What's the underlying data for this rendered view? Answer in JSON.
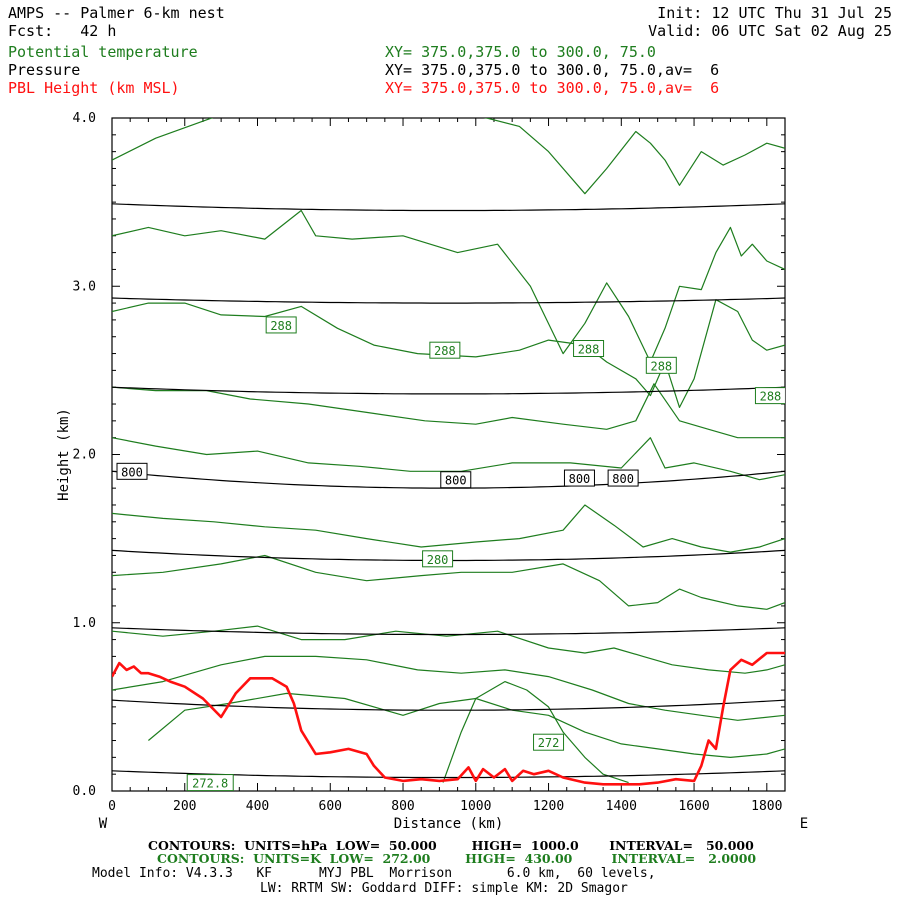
{
  "header": {
    "title": "AMPS -- Palmer 6-km nest",
    "fcst": "Fcst:   42 h",
    "init": "Init: 12 UTC Thu 31 Jul 25",
    "valid": "Valid: 06 UTC Sat 02 Aug 25",
    "field1_name": "Potential temperature",
    "field2_name": "Pressure",
    "field3_name": "PBL Height (km MSL)",
    "field1_xy": "XY= 375.0,375.0 to 300.0, 75.0",
    "field2_xy": "XY= 375.0,375.0 to 300.0, 75.0,av=  6",
    "field3_xy": "XY= 375.0,375.0 to 300.0, 75.0,av=  6"
  },
  "colors": {
    "theta": "#1e7d1e",
    "pressure": "#000000",
    "pbl": "#ff1010"
  },
  "chart_data": {
    "type": "line",
    "xlabel": "Distance (km)",
    "ylabel": "Height (km)",
    "xlim": [
      0,
      1850
    ],
    "ylim": [
      0,
      4.0
    ],
    "x_ticks": [
      0,
      200,
      400,
      600,
      800,
      1000,
      1200,
      1400,
      1600,
      1800
    ],
    "y_ticks": [
      0.0,
      1.0,
      2.0,
      3.0,
      4.0
    ],
    "y_tick_labels": [
      "0.0",
      "1.0",
      "2.0",
      "3.0",
      "4.0"
    ],
    "left_end_label": "W",
    "right_end_label": "E",
    "pressure_contours": [
      {
        "x": [
          0,
          925,
          1850
        ],
        "y": [
          3.49,
          3.45,
          3.49
        ]
      },
      {
        "x": [
          0,
          925,
          1850
        ],
        "y": [
          2.93,
          2.9,
          2.93
        ]
      },
      {
        "x": [
          0,
          925,
          1850
        ],
        "y": [
          2.4,
          2.36,
          2.4
        ]
      },
      {
        "x": [
          0,
          925,
          1850
        ],
        "y": [
          1.9,
          1.8,
          1.9
        ]
      },
      {
        "x": [
          0,
          925,
          1850
        ],
        "y": [
          1.43,
          1.37,
          1.43
        ]
      },
      {
        "x": [
          0,
          925,
          1850
        ],
        "y": [
          0.97,
          0.93,
          0.97
        ]
      },
      {
        "x": [
          0,
          925,
          1850
        ],
        "y": [
          0.54,
          0.48,
          0.54
        ]
      },
      {
        "x": [
          0,
          925,
          1850
        ],
        "y": [
          0.12,
          0.08,
          0.12
        ]
      }
    ],
    "pressure_labels": [
      {
        "text": "800",
        "x": 55,
        "y": 1.9
      },
      {
        "text": "800",
        "x": 945,
        "y": 1.85
      },
      {
        "text": "800",
        "x": 1285,
        "y": 1.86
      },
      {
        "text": "800",
        "x": 1405,
        "y": 1.86
      }
    ],
    "theta_contours": [
      {
        "x": [
          0,
          120,
          300,
          480,
          620,
          760,
          900,
          1030,
          1120,
          1200,
          1300,
          1360,
          1440,
          1480,
          1520,
          1560,
          1620,
          1680,
          1740,
          1800,
          1850
        ],
        "y": [
          3.75,
          3.88,
          4.02,
          4.05,
          4.03,
          4.02,
          4.05,
          4.0,
          3.95,
          3.8,
          3.55,
          3.7,
          3.92,
          3.85,
          3.75,
          3.6,
          3.8,
          3.72,
          3.78,
          3.85,
          3.82
        ]
      },
      {
        "x": [
          0,
          100,
          200,
          300,
          420,
          520,
          560,
          660,
          800,
          950,
          1060,
          1150,
          1240,
          1300,
          1360,
          1420,
          1480,
          1520,
          1560,
          1620,
          1660,
          1700,
          1730,
          1760,
          1800,
          1850
        ],
        "y": [
          3.3,
          3.35,
          3.3,
          3.33,
          3.28,
          3.45,
          3.3,
          3.28,
          3.3,
          3.2,
          3.25,
          3.0,
          2.6,
          2.78,
          3.02,
          2.82,
          2.55,
          2.75,
          3.0,
          2.98,
          3.2,
          3.35,
          3.18,
          3.25,
          3.15,
          3.1
        ]
      },
      {
        "x": [
          0,
          100,
          200,
          300,
          420,
          520,
          620,
          720,
          840,
          1000,
          1120,
          1200,
          1300,
          1360,
          1440,
          1480,
          1520,
          1560,
          1600,
          1660,
          1720,
          1760,
          1800,
          1850
        ],
        "y": [
          2.85,
          2.9,
          2.9,
          2.83,
          2.82,
          2.88,
          2.75,
          2.65,
          2.6,
          2.58,
          2.62,
          2.68,
          2.65,
          2.55,
          2.45,
          2.35,
          2.55,
          2.28,
          2.45,
          2.92,
          2.85,
          2.68,
          2.62,
          2.65
        ]
      },
      {
        "x": [
          0,
          120,
          260,
          380,
          540,
          700,
          860,
          1000,
          1100,
          1240,
          1360,
          1440,
          1490,
          1560,
          1640,
          1720,
          1800,
          1850
        ],
        "y": [
          2.4,
          2.38,
          2.38,
          2.33,
          2.3,
          2.25,
          2.2,
          2.18,
          2.22,
          2.18,
          2.15,
          2.2,
          2.42,
          2.2,
          2.15,
          2.1,
          2.1,
          2.1
        ]
      },
      {
        "x": [
          0,
          120,
          260,
          400,
          540,
          680,
          820,
          960,
          1100,
          1260,
          1400,
          1480,
          1520,
          1600,
          1700,
          1780,
          1850
        ],
        "y": [
          2.1,
          2.05,
          2.0,
          2.02,
          1.95,
          1.93,
          1.9,
          1.9,
          1.95,
          1.95,
          1.92,
          2.1,
          1.92,
          1.95,
          1.9,
          1.85,
          1.88
        ]
      },
      {
        "x": [
          0,
          140,
          280,
          420,
          560,
          700,
          850,
          1000,
          1120,
          1240,
          1300,
          1380,
          1460,
          1540,
          1620,
          1700,
          1780,
          1850
        ],
        "y": [
          1.65,
          1.62,
          1.6,
          1.57,
          1.55,
          1.5,
          1.45,
          1.48,
          1.5,
          1.55,
          1.7,
          1.58,
          1.45,
          1.5,
          1.45,
          1.42,
          1.45,
          1.5
        ]
      },
      {
        "x": [
          0,
          140,
          300,
          420,
          560,
          700,
          850,
          960,
          1100,
          1240,
          1340,
          1420,
          1500,
          1560,
          1620,
          1720,
          1800,
          1850
        ],
        "y": [
          1.28,
          1.3,
          1.35,
          1.4,
          1.3,
          1.25,
          1.28,
          1.3,
          1.3,
          1.35,
          1.25,
          1.1,
          1.12,
          1.2,
          1.15,
          1.1,
          1.08,
          1.12
        ]
      },
      {
        "x": [
          0,
          140,
          280,
          400,
          520,
          640,
          780,
          920,
          1060,
          1200,
          1300,
          1380,
          1460,
          1540,
          1640,
          1740,
          1800,
          1850
        ],
        "y": [
          0.95,
          0.92,
          0.95,
          0.98,
          0.9,
          0.9,
          0.95,
          0.92,
          0.95,
          0.85,
          0.82,
          0.85,
          0.8,
          0.75,
          0.72,
          0.7,
          0.72,
          0.75
        ]
      },
      {
        "x": [
          0,
          140,
          300,
          420,
          560,
          700,
          840,
          960,
          1080,
          1200,
          1320,
          1420,
          1520,
          1620,
          1720,
          1850
        ],
        "y": [
          0.6,
          0.65,
          0.75,
          0.8,
          0.8,
          0.78,
          0.72,
          0.7,
          0.72,
          0.68,
          0.6,
          0.52,
          0.48,
          0.45,
          0.42,
          0.45
        ]
      },
      {
        "x": [
          100,
          200,
          320,
          480,
          640,
          800,
          900,
          1000,
          1100,
          1200,
          1300,
          1400,
          1500,
          1600,
          1700,
          1800,
          1850
        ],
        "y": [
          0.3,
          0.48,
          0.52,
          0.58,
          0.55,
          0.45,
          0.52,
          0.55,
          0.48,
          0.45,
          0.35,
          0.28,
          0.25,
          0.22,
          0.2,
          0.22,
          0.25
        ]
      },
      {
        "x": [
          910,
          960,
          1000,
          1080,
          1140,
          1200,
          1240,
          1300,
          1350,
          1420
        ],
        "y": [
          0.05,
          0.35,
          0.55,
          0.65,
          0.6,
          0.5,
          0.35,
          0.2,
          0.1,
          0.05
        ]
      }
    ],
    "theta_labels": [
      {
        "text": "288",
        "x": 465,
        "y": 2.77
      },
      {
        "text": "288",
        "x": 915,
        "y": 2.62
      },
      {
        "text": "288",
        "x": 1310,
        "y": 2.63
      },
      {
        "text": "288",
        "x": 1510,
        "y": 2.53
      },
      {
        "text": "288",
        "x": 1810,
        "y": 2.35
      },
      {
        "text": "280",
        "x": 895,
        "y": 1.38
      },
      {
        "text": "272",
        "x": 1200,
        "y": 0.29
      },
      {
        "text": "272.8",
        "x": 270,
        "y": 0.05
      }
    ],
    "pbl_height": {
      "x": [
        0,
        20,
        40,
        60,
        80,
        100,
        130,
        160,
        200,
        250,
        300,
        340,
        380,
        440,
        480,
        500,
        520,
        560,
        600,
        650,
        700,
        720,
        750,
        800,
        850,
        900,
        950,
        980,
        1000,
        1020,
        1050,
        1080,
        1100,
        1130,
        1160,
        1200,
        1240,
        1300,
        1350,
        1400,
        1450,
        1500,
        1550,
        1600,
        1620,
        1640,
        1660,
        1680,
        1700,
        1730,
        1760,
        1800,
        1850
      ],
      "y": [
        0.68,
        0.76,
        0.72,
        0.74,
        0.7,
        0.7,
        0.68,
        0.65,
        0.62,
        0.55,
        0.44,
        0.58,
        0.67,
        0.67,
        0.62,
        0.52,
        0.36,
        0.22,
        0.23,
        0.25,
        0.22,
        0.15,
        0.08,
        0.06,
        0.07,
        0.06,
        0.07,
        0.14,
        0.06,
        0.13,
        0.08,
        0.13,
        0.06,
        0.12,
        0.1,
        0.12,
        0.08,
        0.05,
        0.04,
        0.04,
        0.04,
        0.05,
        0.07,
        0.06,
        0.15,
        0.3,
        0.25,
        0.5,
        0.72,
        0.78,
        0.75,
        0.82,
        0.82
      ]
    }
  },
  "footer": {
    "contours1": "CONTOURS:  UNITS=hPa  LOW=  50.000        HIGH=  1000.0       INTERVAL=   50.000",
    "contours2": "CONTOURS:  UNITS=K  LOW=  272.00        HIGH=  430.00         INTERVAL=   2.0000",
    "model_info": "Model Info: V4.3.3   KF      MYJ PBL  Morrison       6.0 km,  60 levels,",
    "model_info2": "LW: RRTM SW: Goddard DIFF: simple KM: 2D Smagor"
  }
}
